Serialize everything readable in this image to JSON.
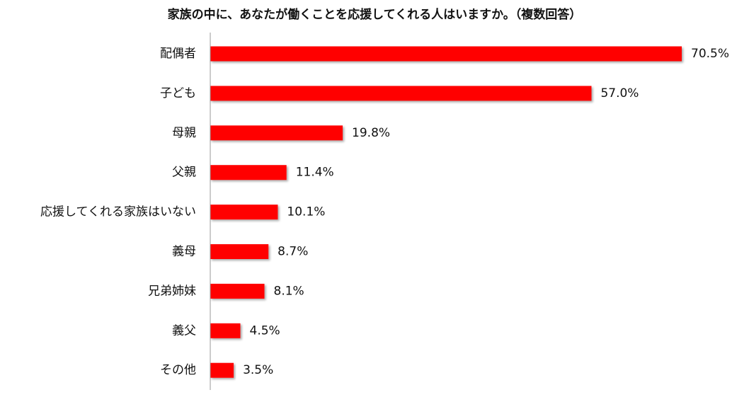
{
  "chart_data": {
    "type": "bar",
    "orientation": "horizontal",
    "title": "家族の中に、あなたが働くことを応援してくれる人はいますか。（複数回答）",
    "categories": [
      "配偶者",
      "子ども",
      "母親",
      "父親",
      "応援してくれる家族はいない",
      "義母",
      "兄弟姉妹",
      "義父",
      "その他"
    ],
    "values": [
      70.5,
      57.0,
      19.8,
      11.4,
      10.1,
      8.7,
      8.1,
      4.5,
      3.5
    ],
    "value_labels": [
      "70.5%",
      "57.0%",
      "19.8%",
      "11.4%",
      "10.1%",
      "8.7%",
      "8.1%",
      "4.5%",
      "3.5%"
    ],
    "unit": "%",
    "xlim": [
      0,
      70.5
    ],
    "bar_color": "#ff0000",
    "grid": false,
    "legend": "none"
  }
}
